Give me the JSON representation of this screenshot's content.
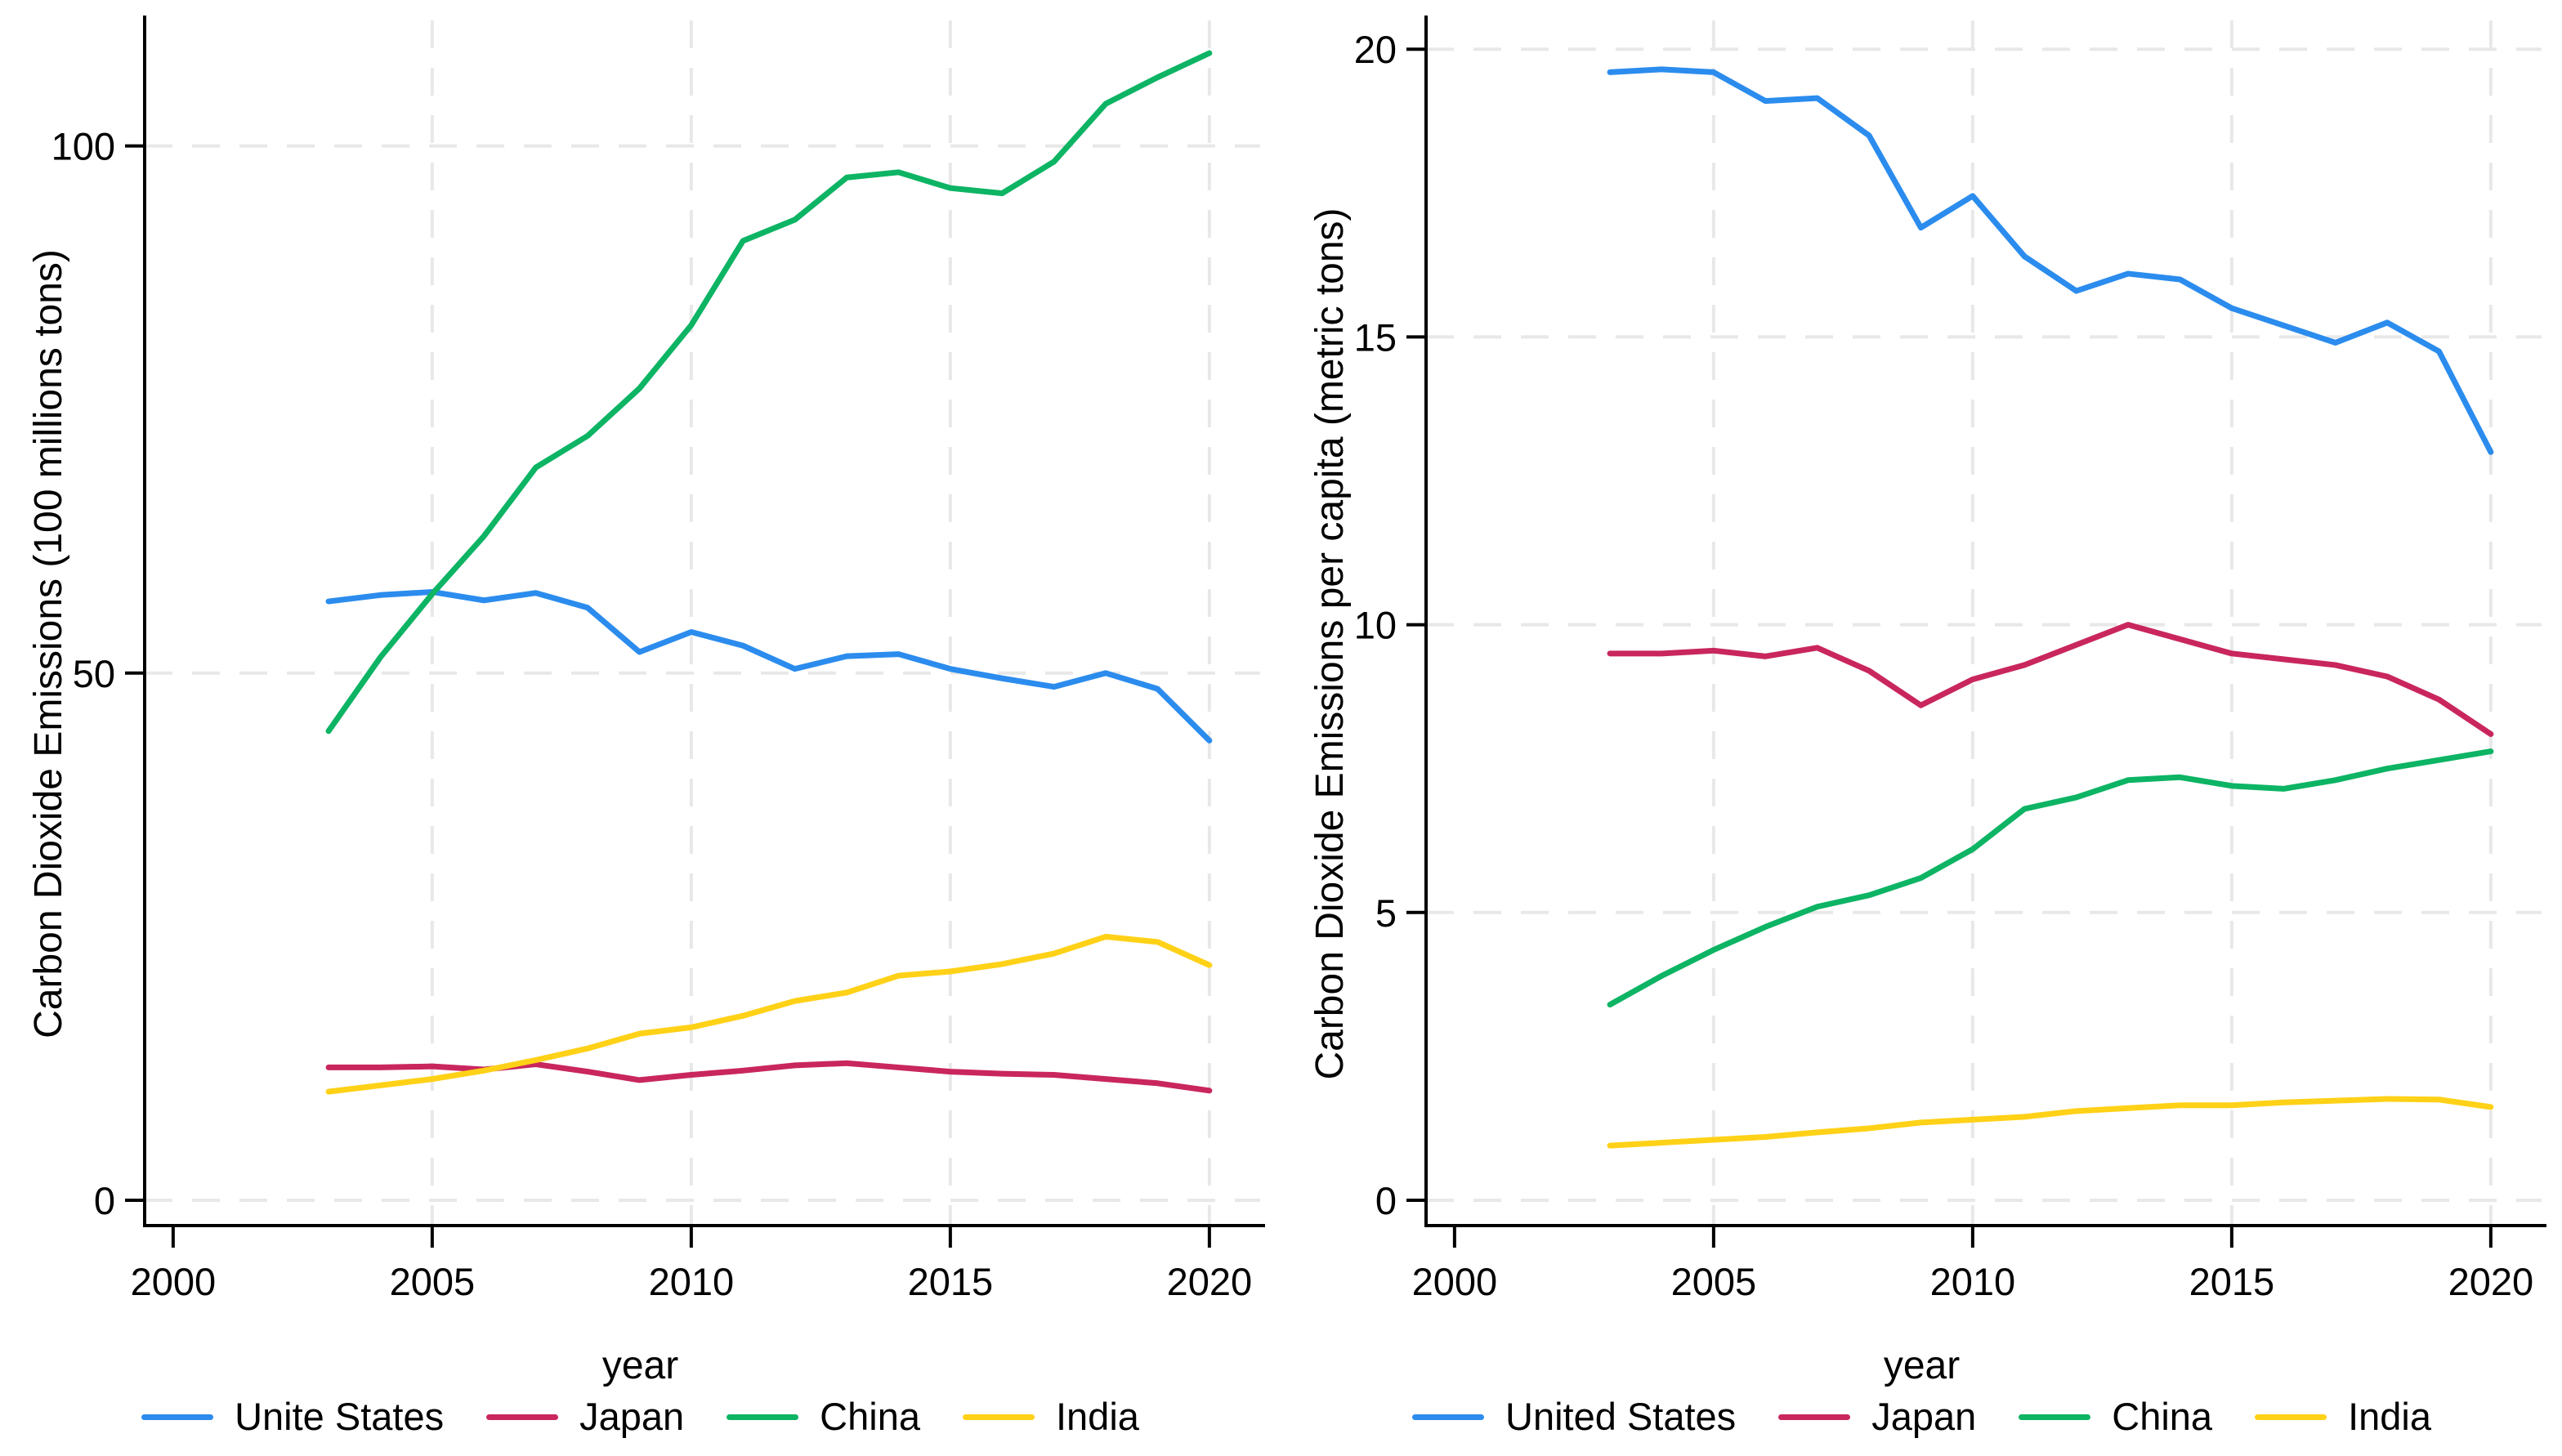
{
  "figure": {
    "x_axis_title": "year",
    "background_color": "#ffffff",
    "axis_color": "#000000",
    "gridline_color": "#e8e8e8",
    "gridline_style": "dashed"
  },
  "chart_data": [
    {
      "type": "line",
      "title": "",
      "xlabel": "year",
      "ylabel": "Carbon Dioxide Emissions (100 millions tons)",
      "x": [
        2003,
        2004,
        2005,
        2006,
        2007,
        2008,
        2009,
        2010,
        2011,
        2012,
        2013,
        2014,
        2015,
        2016,
        2017,
        2018,
        2019,
        2020
      ],
      "x_ticks": [
        2000,
        2005,
        2010,
        2015,
        2020
      ],
      "x_grid_ticks": [
        2005,
        2010,
        2015,
        2020
      ],
      "y_ticks": [
        0,
        50,
        100
      ],
      "xlim": [
        1999.45,
        2020.98
      ],
      "ylim": [
        -2.4,
        111.9
      ],
      "grid": "on",
      "legend_position": "bottom",
      "series": [
        {
          "name": "Unite States",
          "color": "#2b8cee",
          "values": [
            56.8,
            57.4,
            57.7,
            56.9,
            57.6,
            56.2,
            52.0,
            53.9,
            52.6,
            50.4,
            51.6,
            51.8,
            50.4,
            49.5,
            48.7,
            50.0,
            48.5,
            43.6
          ]
        },
        {
          "name": "Japan",
          "color": "#c9265e",
          "values": [
            12.6,
            12.6,
            12.7,
            12.4,
            12.9,
            12.2,
            11.4,
            11.9,
            12.3,
            12.8,
            13.0,
            12.6,
            12.2,
            12.0,
            11.9,
            11.5,
            11.1,
            10.4
          ]
        },
        {
          "name": "China",
          "color": "#0cb464",
          "values": [
            44.5,
            51.5,
            57.5,
            63.0,
            69.5,
            72.5,
            77.0,
            83.0,
            91.0,
            93.0,
            97.0,
            97.5,
            96.0,
            95.5,
            98.5,
            104.0,
            106.5,
            108.8
          ]
        },
        {
          "name": "India",
          "color": "#ffd117",
          "values": [
            10.3,
            10.9,
            11.5,
            12.3,
            13.3,
            14.4,
            15.8,
            16.4,
            17.5,
            18.9,
            19.7,
            21.3,
            21.7,
            22.4,
            23.4,
            25.0,
            24.5,
            22.3
          ]
        }
      ]
    },
    {
      "type": "line",
      "title": "",
      "xlabel": "year",
      "ylabel": "Carbon Dioxide Emissions per capita (metric tons)",
      "x": [
        2003,
        2004,
        2005,
        2006,
        2007,
        2008,
        2009,
        2010,
        2011,
        2012,
        2013,
        2014,
        2015,
        2016,
        2017,
        2018,
        2019,
        2020
      ],
      "x_ticks": [
        2000,
        2005,
        2010,
        2015,
        2020
      ],
      "x_grid_ticks": [
        2005,
        2010,
        2015,
        2020
      ],
      "y_ticks": [
        0,
        5,
        10,
        15,
        20
      ],
      "xlim": [
        1999.45,
        2020.98
      ],
      "ylim": [
        -0.44,
        20.5
      ],
      "grid": "on",
      "legend_position": "bottom",
      "series": [
        {
          "name": "United States",
          "color": "#2b8cee",
          "values": [
            19.6,
            19.65,
            19.6,
            19.1,
            19.15,
            18.5,
            16.9,
            17.45,
            16.4,
            15.8,
            16.1,
            16.0,
            15.5,
            15.2,
            14.9,
            15.25,
            14.75,
            13.0
          ]
        },
        {
          "name": "Japan",
          "color": "#c9265e",
          "values": [
            9.5,
            9.5,
            9.55,
            9.45,
            9.6,
            9.2,
            8.6,
            9.05,
            9.3,
            9.65,
            10.0,
            9.75,
            9.5,
            9.4,
            9.3,
            9.1,
            8.7,
            8.1
          ]
        },
        {
          "name": "China",
          "color": "#0cb464",
          "values": [
            3.4,
            3.9,
            4.35,
            4.75,
            5.1,
            5.3,
            5.6,
            6.1,
            6.8,
            7.0,
            7.3,
            7.35,
            7.2,
            7.15,
            7.3,
            7.5,
            7.65,
            7.8
          ]
        },
        {
          "name": "India",
          "color": "#ffd117",
          "values": [
            0.95,
            1.0,
            1.05,
            1.1,
            1.18,
            1.25,
            1.35,
            1.4,
            1.45,
            1.55,
            1.6,
            1.65,
            1.65,
            1.7,
            1.73,
            1.76,
            1.75,
            1.62
          ]
        }
      ]
    }
  ]
}
